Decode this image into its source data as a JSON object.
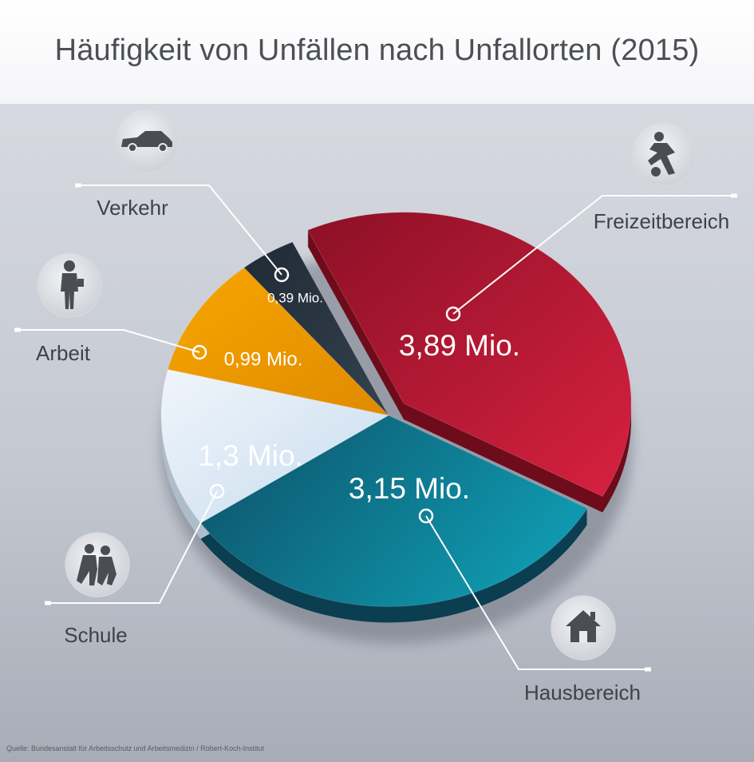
{
  "chart_data": {
    "type": "pie",
    "title": "Häufigkeit von Unfällen nach Unfallorten (2015)",
    "unit": "Mio.",
    "legend": "none",
    "slices": [
      {
        "name": "Freizeitbereich",
        "value": 3.89,
        "value_label": "3,89 Mio.",
        "color": "#b81a32",
        "icon": "soccer-player-icon",
        "exploded": true
      },
      {
        "name": "Hausbereich",
        "value": 3.15,
        "value_label": "3,15 Mio.",
        "color": "#0f6f86",
        "icon": "house-icon",
        "exploded": false
      },
      {
        "name": "Schule",
        "value": 1.3,
        "value_label": "1,3 Mio.",
        "color": "#dce7f1",
        "icon": "children-icon",
        "exploded": false
      },
      {
        "name": "Arbeit",
        "value": 0.99,
        "value_label": "0,99 Mio.",
        "color": "#f0a000",
        "icon": "worker-icon",
        "exploded": false
      },
      {
        "name": "Verkehr",
        "value": 0.39,
        "value_label": "0,39 Mio.",
        "color": "#26323e",
        "icon": "car-icon",
        "exploded": false
      }
    ]
  },
  "source": "Quelle: Bundesanstalt für Arbeitsschutz und Arbeitsmedizin / Robert-Koch-Institut"
}
